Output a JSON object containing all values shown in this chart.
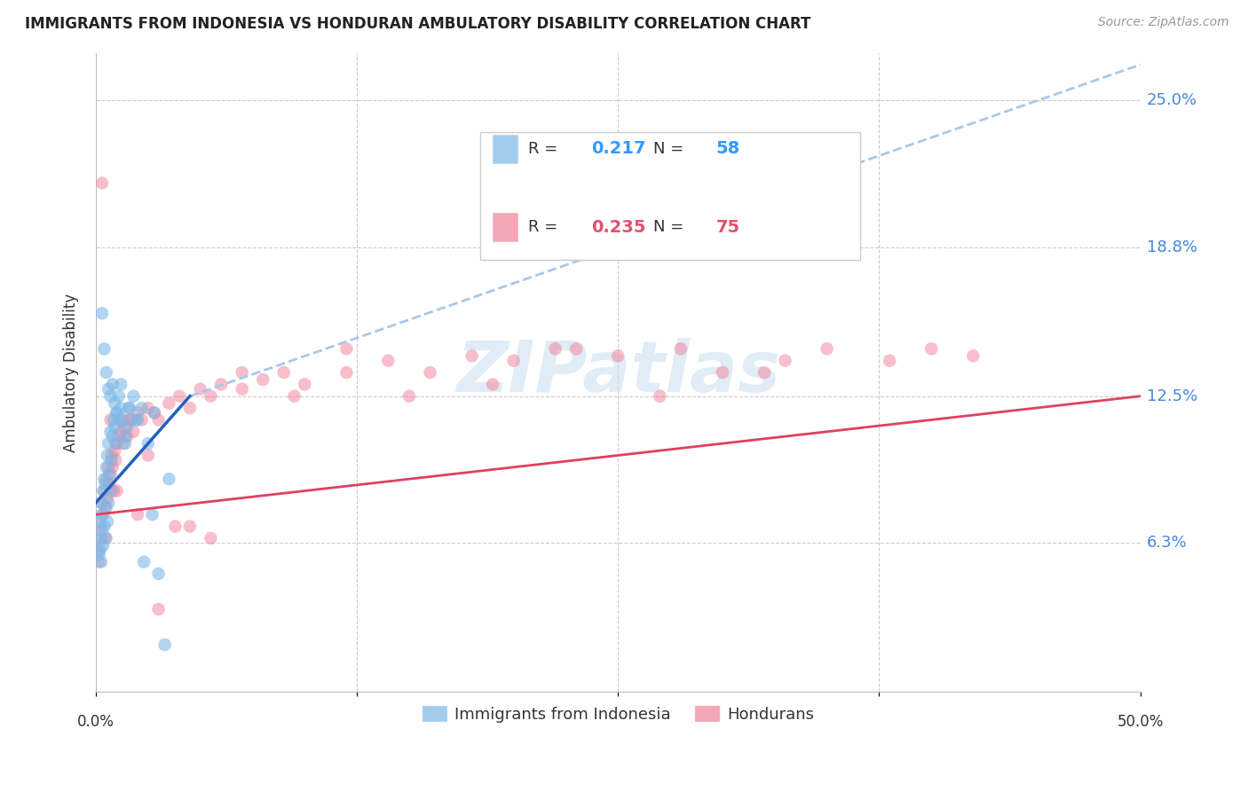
{
  "title": "IMMIGRANTS FROM INDONESIA VS HONDURAN AMBULATORY DISABILITY CORRELATION CHART",
  "source": "Source: ZipAtlas.com",
  "ylabel": "Ambulatory Disability",
  "ytick_values": [
    6.3,
    12.5,
    18.8,
    25.0
  ],
  "ytick_labels": [
    "6.3%",
    "12.5%",
    "18.8%",
    "25.0%"
  ],
  "xlim": [
    0.0,
    50.0
  ],
  "ylim": [
    0.0,
    27.0
  ],
  "blue_color": "#7db8e8",
  "pink_color": "#f08098",
  "trendline_blue_color": "#2060c0",
  "trendline_pink_color": "#e04060",
  "trendline_dashed_color": "#a8c8e8",
  "background_color": "#ffffff",
  "watermark": "ZIPatlas",
  "blue_r": "0.217",
  "blue_n": "58",
  "pink_r": "0.235",
  "pink_n": "75",
  "legend_label_1": "Immigrants from Indonesia",
  "legend_label_2": "Hondurans",
  "blue_points_x": [
    0.1,
    0.15,
    0.2,
    0.2,
    0.25,
    0.25,
    0.3,
    0.3,
    0.35,
    0.35,
    0.4,
    0.4,
    0.45,
    0.45,
    0.5,
    0.5,
    0.55,
    0.55,
    0.6,
    0.6,
    0.65,
    0.7,
    0.7,
    0.75,
    0.8,
    0.85,
    0.9,
    0.95,
    1.0,
    1.1,
    1.2,
    1.3,
    1.4,
    1.5,
    1.6,
    1.8,
    2.0,
    2.2,
    2.5,
    2.8,
    3.0,
    3.5,
    0.3,
    0.4,
    0.5,
    0.6,
    0.7,
    0.8,
    0.9,
    1.0,
    1.1,
    1.2,
    1.4,
    1.6,
    1.9,
    2.3,
    2.7,
    3.3
  ],
  "blue_points_y": [
    6.5,
    5.8,
    6.0,
    7.2,
    5.5,
    8.0,
    6.8,
    7.5,
    6.2,
    8.5,
    7.0,
    9.0,
    6.5,
    8.8,
    7.8,
    9.5,
    7.2,
    10.0,
    8.0,
    10.5,
    9.2,
    8.5,
    11.0,
    9.8,
    10.8,
    11.5,
    11.2,
    10.5,
    11.8,
    11.5,
    12.0,
    11.5,
    10.8,
    11.2,
    12.0,
    12.5,
    11.5,
    12.0,
    10.5,
    11.8,
    5.0,
    9.0,
    16.0,
    14.5,
    13.5,
    12.8,
    12.5,
    13.0,
    12.2,
    11.8,
    12.5,
    13.0,
    10.5,
    12.0,
    11.5,
    5.5,
    7.5,
    2.0
  ],
  "pink_points_x": [
    0.1,
    0.15,
    0.2,
    0.25,
    0.3,
    0.35,
    0.4,
    0.45,
    0.5,
    0.55,
    0.6,
    0.65,
    0.7,
    0.75,
    0.8,
    0.85,
    0.9,
    0.95,
    1.0,
    1.1,
    1.2,
    1.3,
    1.4,
    1.5,
    1.6,
    1.8,
    2.0,
    2.2,
    2.5,
    2.8,
    3.0,
    3.5,
    4.0,
    4.5,
    5.0,
    5.5,
    6.0,
    7.0,
    8.0,
    9.0,
    10.0,
    12.0,
    14.0,
    16.0,
    18.0,
    20.0,
    22.0,
    25.0,
    28.0,
    30.0,
    33.0,
    35.0,
    38.0,
    40.0,
    42.0,
    0.3,
    0.5,
    0.7,
    1.0,
    1.3,
    1.7,
    2.0,
    2.5,
    3.0,
    3.8,
    4.5,
    5.5,
    7.0,
    9.5,
    12.0,
    15.0,
    19.0,
    23.0,
    27.0,
    32.0
  ],
  "pink_points_y": [
    6.0,
    5.5,
    7.0,
    6.5,
    8.0,
    7.5,
    8.5,
    7.8,
    9.0,
    8.2,
    9.5,
    8.8,
    9.2,
    10.0,
    9.5,
    8.5,
    10.2,
    9.8,
    10.5,
    10.8,
    11.0,
    10.5,
    11.2,
    10.8,
    11.5,
    11.0,
    11.8,
    11.5,
    12.0,
    11.8,
    11.5,
    12.2,
    12.5,
    12.0,
    12.8,
    12.5,
    13.0,
    12.8,
    13.2,
    13.5,
    13.0,
    13.5,
    14.0,
    13.5,
    14.2,
    14.0,
    14.5,
    14.2,
    14.5,
    13.5,
    14.0,
    14.5,
    14.0,
    14.5,
    14.2,
    21.5,
    6.5,
    11.5,
    8.5,
    11.5,
    11.5,
    7.5,
    10.0,
    3.5,
    7.0,
    7.0,
    6.5,
    13.5,
    12.5,
    14.5,
    12.5,
    13.0,
    14.5,
    12.5,
    13.5
  ],
  "blue_trend_x0": 0.0,
  "blue_trend_x1": 4.5,
  "blue_trend_y0": 8.0,
  "blue_trend_y1": 12.5,
  "blue_dash_x0": 4.5,
  "blue_dash_x1": 50.0,
  "blue_dash_y0": 12.5,
  "blue_dash_y1": 26.5,
  "pink_trend_x0": 0.0,
  "pink_trend_x1": 50.0,
  "pink_trend_y0": 7.5,
  "pink_trend_y1": 12.5
}
